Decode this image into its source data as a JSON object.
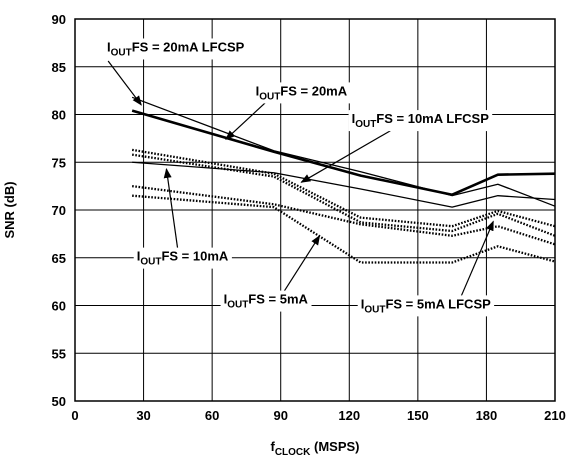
{
  "chart_data": {
    "type": "line",
    "xlabel": {
      "main": "f",
      "sub": "CLOCK",
      "rest": " (MSPS)"
    },
    "ylabel": "SNR (dB)",
    "xlim": [
      0,
      210
    ],
    "ylim": [
      50,
      90
    ],
    "xticks": [
      0,
      30,
      60,
      90,
      120,
      150,
      180,
      210
    ],
    "yticks": [
      50,
      55,
      60,
      65,
      70,
      75,
      80,
      85,
      90
    ],
    "grid": true,
    "series": [
      {
        "key": "s20_lfcsp",
        "style": "solid-thin",
        "x": [
          25,
          87,
          125,
          165,
          185,
          210
        ],
        "y": [
          81.8,
          76.2,
          74.0,
          71.5,
          72.7,
          70.4
        ]
      },
      {
        "key": "s20",
        "style": "solid-thick",
        "x": [
          25,
          87,
          125,
          165,
          185,
          210
        ],
        "y": [
          80.4,
          76.1,
          73.6,
          71.6,
          73.7,
          73.8
        ]
      },
      {
        "key": "s10_lfcsp",
        "style": "solid-thin",
        "x": [
          25,
          87,
          125,
          165,
          185,
          210
        ],
        "y": [
          75.0,
          73.9,
          72.2,
          70.3,
          71.5,
          71.1
        ]
      },
      {
        "key": "s10_a",
        "style": "dotted",
        "x": [
          25,
          87,
          125,
          165,
          185,
          210
        ],
        "y": [
          76.3,
          73.8,
          69.2,
          68.3,
          69.9,
          68.3
        ]
      },
      {
        "key": "s10_b",
        "style": "dotted",
        "x": [
          25,
          87,
          125,
          165,
          185,
          210
        ],
        "y": [
          75.8,
          73.5,
          68.7,
          67.8,
          69.6,
          67.3
        ]
      },
      {
        "key": "s5_lfcsp",
        "style": "dotted",
        "x": [
          25,
          87,
          125,
          165,
          185,
          210
        ],
        "y": [
          72.5,
          70.6,
          68.5,
          67.3,
          68.3,
          66.4
        ]
      },
      {
        "key": "s5",
        "style": "dotted",
        "x": [
          25,
          87,
          125,
          165,
          185,
          210
        ],
        "y": [
          71.5,
          70.3,
          64.5,
          64.5,
          66.2,
          64.6
        ]
      }
    ],
    "annotations": [
      {
        "key": "a20_lfcsp",
        "main": "I",
        "sub": "OUT",
        "rest": "FS = 20mA LFCSP",
        "text_x": 14,
        "text_y": 86.6,
        "arrow_from": [
          14.5,
          85.6
        ],
        "arrow_to": [
          29,
          81.0
        ]
      },
      {
        "key": "a20",
        "main": "I",
        "sub": "OUT",
        "rest": "FS = 20mA",
        "text_x": 79,
        "text_y": 82.0,
        "arrow_from": [
          84,
          81.4
        ],
        "arrow_to": [
          66,
          77.4
        ]
      },
      {
        "key": "a10_lfcsp",
        "main": "I",
        "sub": "OUT",
        "rest": "FS = 10mA LFCSP",
        "text_x": 121,
        "text_y": 79.1,
        "arrow_from": [
          138,
          78.3
        ],
        "arrow_to": [
          99,
          72.9
        ]
      },
      {
        "key": "a10",
        "main": "I",
        "sub": "OUT",
        "rest": "FS = 10mA",
        "text_x": 27,
        "text_y": 64.7,
        "arrow_from": [
          45,
          65.8
        ],
        "arrow_to": [
          40,
          74.3
        ]
      },
      {
        "key": "a5",
        "main": "I",
        "sub": "OUT",
        "rest": "FS = 5mA",
        "text_x": 65,
        "text_y": 60.2,
        "arrow_from": [
          91,
          61.3
        ],
        "arrow_to": [
          107,
          67.3
        ]
      },
      {
        "key": "a5_lfcsp",
        "main": "I",
        "sub": "OUT",
        "rest": "FS = 5mA LFCSP",
        "text_x": 125,
        "text_y": 59.7,
        "arrow_from": [
          169,
          61.0
        ],
        "arrow_to": [
          183,
          68.8
        ]
      }
    ]
  }
}
